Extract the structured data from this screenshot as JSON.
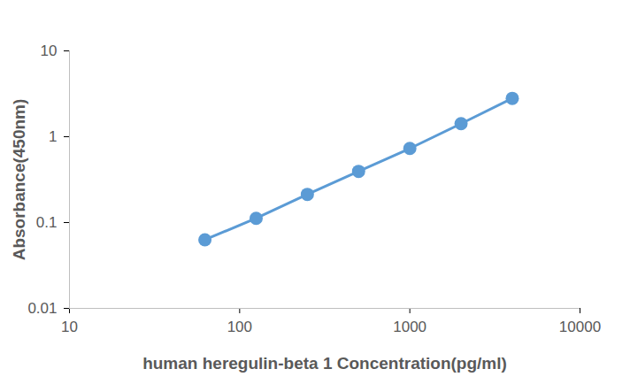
{
  "chart_data": {
    "type": "line",
    "x": [
      62.5,
      125,
      250,
      500,
      1000,
      2000,
      4000
    ],
    "values": [
      0.063,
      0.112,
      0.213,
      0.395,
      0.73,
      1.42,
      2.8
    ],
    "color": "#5b9bd5",
    "marker": "circle",
    "xlabel": "human heregulin-beta 1 Concentration(pg/ml)",
    "ylabel": "Absorbance(450nm)",
    "log": true,
    "xlim": [
      10,
      10000
    ],
    "xticks": [
      10,
      100,
      1000,
      10000
    ],
    "ylim": [
      0.01,
      10
    ],
    "yticks": [
      0.01,
      0.1,
      1,
      10
    ],
    "grid": false
  }
}
